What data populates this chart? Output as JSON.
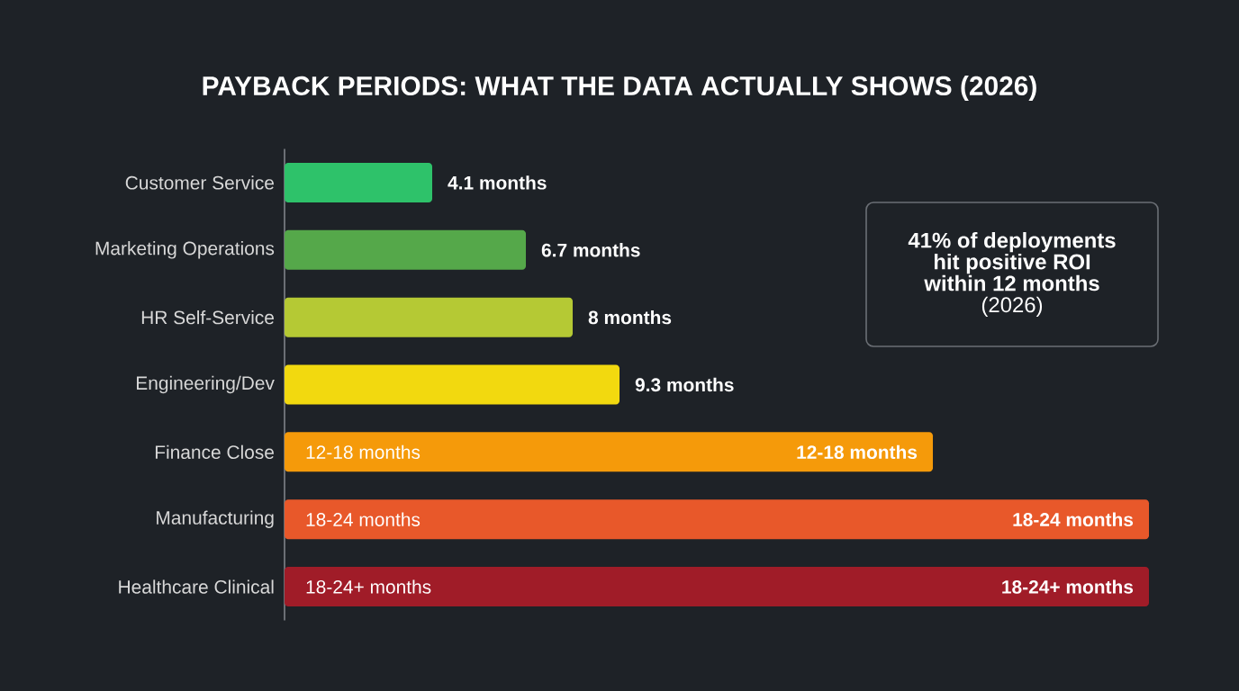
{
  "chart_data": {
    "type": "bar",
    "orientation": "horizontal",
    "tick_labels": "y",
    "title": "PAYBACK PERIODS: WHAT THE DATA ACTUALLY SHOWS (2026)",
    "categories": [
      "Customer Service",
      "Marketing Operations",
      "HR Self-Service",
      "Engineering/Dev",
      "Finance Close",
      "Manufacturing",
      "Healthcare Clinical"
    ],
    "values": [
      4.1,
      6.7,
      8,
      9.3,
      18,
      24,
      24
    ],
    "xlim": [
      0,
      24
    ],
    "colors": [
      "#2ec26a",
      "#55a84a",
      "#b5c934",
      "#f2d90f",
      "#f59a0a",
      "#e8582a",
      "#a01c28"
    ],
    "value_labels": [
      "4.1 months",
      "6.7 months",
      "8 months",
      "9.3 months",
      "12-18 months",
      "18-24 months",
      "18-24+ months"
    ],
    "annotations": [
      "41% of deployments hit positive ROI within 12 months",
      "(2026)"
    ]
  }
}
